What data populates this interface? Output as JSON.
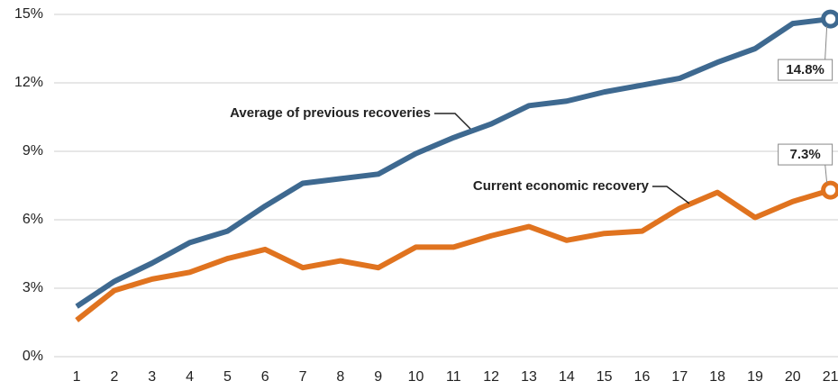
{
  "chart_data": {
    "type": "line",
    "x": [
      1,
      2,
      3,
      4,
      5,
      6,
      7,
      8,
      9,
      10,
      11,
      12,
      13,
      14,
      15,
      16,
      17,
      18,
      19,
      20,
      21
    ],
    "xlim": [
      0.4,
      21.2
    ],
    "xticks": [
      1,
      2,
      3,
      4,
      5,
      6,
      7,
      8,
      9,
      10,
      11,
      12,
      13,
      14,
      15,
      16,
      17,
      18,
      19,
      20,
      21
    ],
    "ylim": [
      0,
      15
    ],
    "yticks": [
      {
        "value": 0,
        "label": "0%"
      },
      {
        "value": 3,
        "label": "3%"
      },
      {
        "value": 6,
        "label": "6%"
      },
      {
        "value": 9,
        "label": "9%"
      },
      {
        "value": 12,
        "label": "12%"
      },
      {
        "value": 15,
        "label": "15%"
      }
    ],
    "grid": true,
    "series": [
      {
        "name": "Average of previous recoveries",
        "color": "#3e6990",
        "values": [
          2.2,
          3.3,
          4.1,
          5.0,
          5.5,
          6.6,
          7.6,
          7.8,
          8.0,
          8.9,
          9.6,
          10.2,
          11.0,
          11.2,
          11.6,
          11.9,
          12.2,
          12.9,
          13.5,
          14.6,
          14.8
        ],
        "value_labels": [
          null,
          null,
          null,
          null,
          null,
          null,
          null,
          null,
          null,
          null,
          null,
          null,
          null,
          null,
          null,
          null,
          null,
          null,
          null,
          null,
          "14.8%"
        ]
      },
      {
        "name": "Current economic recovery",
        "color": "#e0731f",
        "values": [
          1.6,
          2.9,
          3.4,
          3.7,
          4.3,
          4.7,
          3.9,
          4.2,
          3.9,
          4.8,
          4.8,
          5.3,
          5.7,
          5.1,
          5.4,
          5.5,
          6.5,
          7.2,
          6.1,
          6.8,
          7.3
        ],
        "value_labels": [
          null,
          null,
          null,
          null,
          null,
          null,
          null,
          null,
          null,
          null,
          null,
          null,
          null,
          null,
          null,
          null,
          null,
          null,
          null,
          null,
          "7.3%"
        ]
      }
    ]
  }
}
